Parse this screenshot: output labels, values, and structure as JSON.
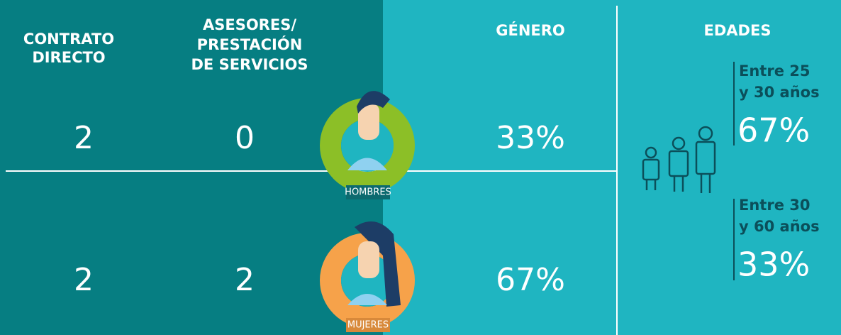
{
  "headers": {
    "contrato": [
      "CONTRATO",
      "DIRECTO"
    ],
    "asesores": [
      "ASESORES/",
      "PRESTACIÓN",
      "DE SERVICIOS"
    ],
    "genero": "GÉNERO",
    "edades": "EDADES"
  },
  "rows": [
    {
      "contrato": "2",
      "asesores": "0",
      "label": "HOMBRES",
      "genero": "33%"
    },
    {
      "contrato": "2",
      "asesores": "2",
      "label": "MUJERES",
      "genero": "67%"
    }
  ],
  "ages": [
    {
      "label": [
        "Entre 25",
        "y 30 años"
      ],
      "value": "67%"
    },
    {
      "label": [
        "Entre 30",
        "y 60 años"
      ],
      "value": "33%"
    }
  ]
}
